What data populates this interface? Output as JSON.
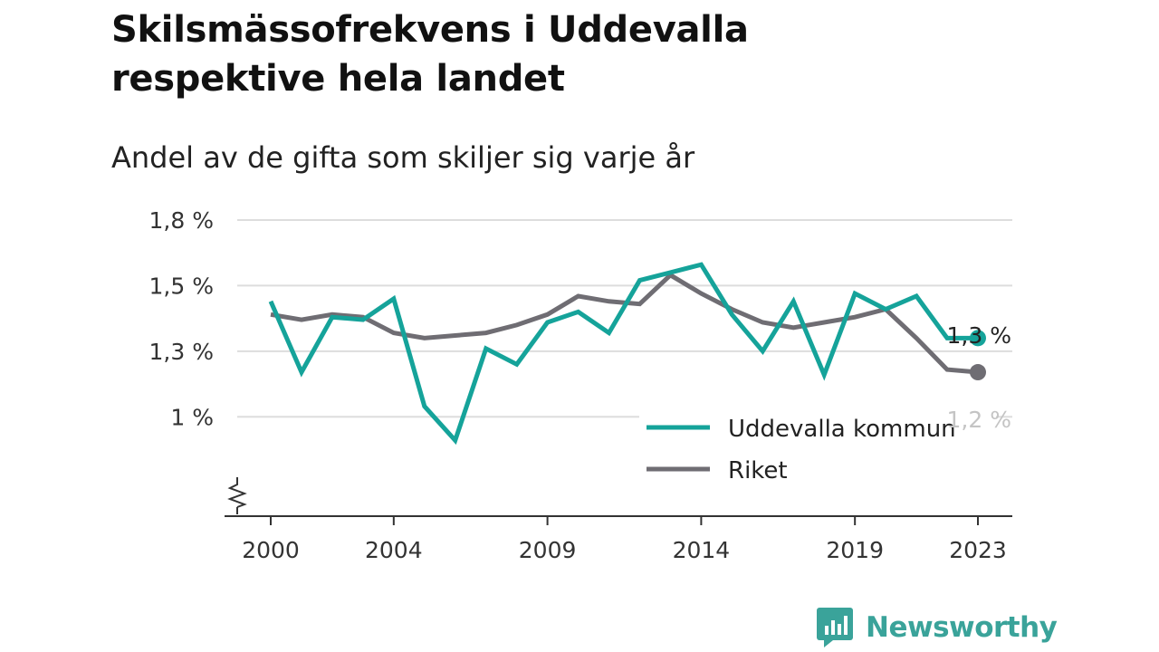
{
  "title_lines": [
    "Skilsmässofrekvens i Uddevalla",
    "respektive hela landet"
  ],
  "subtitle": "Andel av de gifta som skiljer sig varje år",
  "brand": {
    "name": "Newsworthy",
    "icon": "newsworthy-logo-icon",
    "color": "#3aa39a"
  },
  "chart_data": {
    "type": "line",
    "x": [
      2000,
      2001,
      2002,
      2003,
      2004,
      2005,
      2006,
      2007,
      2008,
      2009,
      2010,
      2011,
      2012,
      2013,
      2014,
      2015,
      2016,
      2017,
      2018,
      2019,
      2020,
      2021,
      2022,
      2023
    ],
    "x_tick_labels": [
      "2000",
      "2004",
      "2009",
      "2014",
      "2019",
      "2023"
    ],
    "x_tick_values": [
      2000,
      2004,
      2009,
      2014,
      2019,
      2023
    ],
    "y_tick_labels": [
      "1 %",
      "1,3 %",
      "1,5 %",
      "1,8 %"
    ],
    "y_tick_values": [
      1.0,
      1.25,
      1.5,
      1.75
    ],
    "ylim": [
      0.78,
      1.75
    ],
    "axis_break": true,
    "grid": "horizontal",
    "legend_position": "bottom-right",
    "series": [
      {
        "name": "Uddevalla kommun",
        "color": "#15a39a",
        "values": [
          1.44,
          1.17,
          1.38,
          1.37,
          1.45,
          1.04,
          0.91,
          1.26,
          1.2,
          1.36,
          1.4,
          1.32,
          1.52,
          1.55,
          1.58,
          1.39,
          1.25,
          1.44,
          1.16,
          1.47,
          1.41,
          1.46,
          1.3,
          1.3
        ],
        "end_label": "1,3 %"
      },
      {
        "name": "Riket",
        "color": "#6f6d73",
        "values": [
          1.39,
          1.37,
          1.39,
          1.38,
          1.32,
          1.3,
          1.31,
          1.32,
          1.35,
          1.39,
          1.46,
          1.44,
          1.43,
          1.54,
          1.47,
          1.41,
          1.36,
          1.34,
          1.36,
          1.38,
          1.41,
          1.3,
          1.18,
          1.17
        ],
        "end_label": "1,2 %"
      }
    ]
  }
}
